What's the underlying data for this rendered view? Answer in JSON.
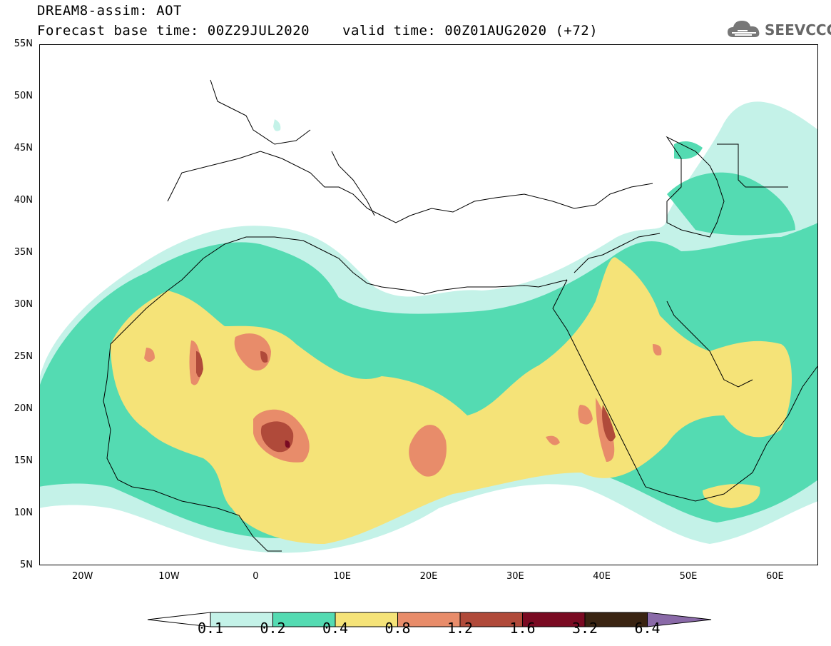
{
  "title": {
    "line1": "DREAM8-assim: AOT",
    "line2": "Forecast base time: 00Z29JUL2020",
    "valid": "valid time: 00Z01AUG2020 (+72)"
  },
  "logo": {
    "text": "SEEVCCC",
    "icon": "cloud-icon"
  },
  "map": {
    "lat_range": [
      5,
      55
    ],
    "lon_range": [
      -25,
      65
    ],
    "lat_labels": [
      "55N",
      "50N",
      "45N",
      "40N",
      "35N",
      "30N",
      "25N",
      "20N",
      "15N",
      "10N",
      "5N"
    ],
    "lon_labels": [
      "20W",
      "10W",
      "0",
      "10E",
      "20E",
      "30E",
      "40E",
      "50E",
      "60E"
    ]
  },
  "colorbar": {
    "colors": [
      "#c4f2e8",
      "#54dbb2",
      "#f5e378",
      "#e88c6a",
      "#b04a3a",
      "#7a0a22",
      "#3a2412",
      "#8a6aa8"
    ],
    "under_color": "#ffffff",
    "labels": [
      "0.1",
      "0.2",
      "0.4",
      "0.8",
      "1.2",
      "1.6",
      "3.2",
      "6.4"
    ]
  }
}
